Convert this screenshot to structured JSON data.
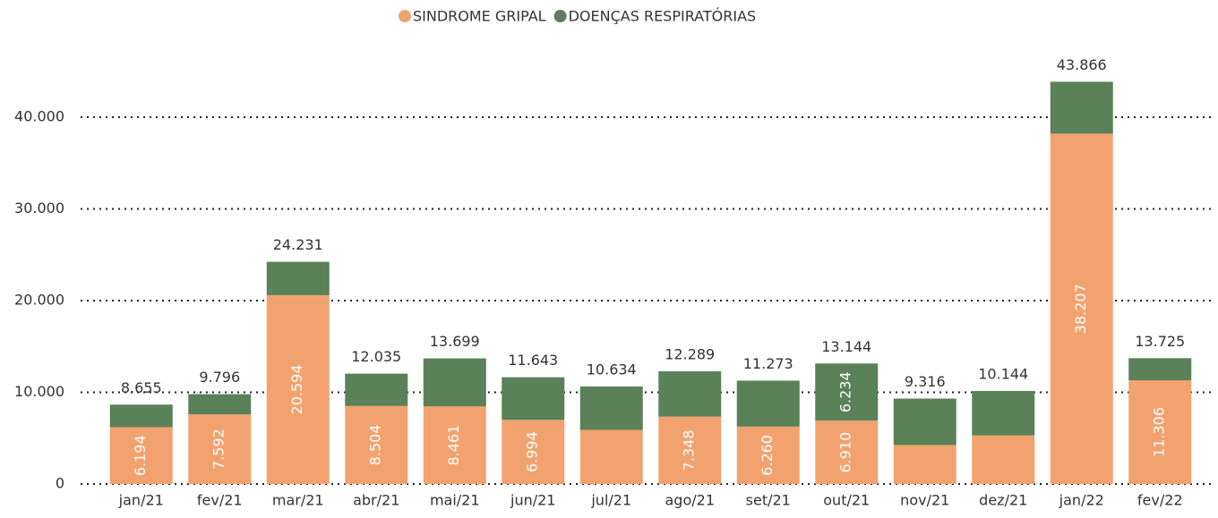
{
  "chart_data": {
    "type": "stacked-bar",
    "categories": [
      "jan/21",
      "fev/21",
      "mar/21",
      "abr/21",
      "mai/21",
      "jun/21",
      "jul/21",
      "ago/21",
      "set/21",
      "out/21",
      "nov/21",
      "dez/21",
      "jan/22",
      "fev/22"
    ],
    "series": [
      {
        "name": "SINDROME GRIPAL",
        "color": "#f2a26e",
        "values": [
          6194,
          7592,
          20594,
          8504,
          8461,
          6994,
          5900,
          7348,
          6260,
          6910,
          4250,
          5300,
          38207,
          11306
        ],
        "value_labels": [
          "6.194",
          "7.592",
          "20.594",
          "8.504",
          "8.461",
          "6.994",
          null,
          "7.348",
          "6.260",
          "6.910",
          null,
          null,
          "38.207",
          "11.306"
        ]
      },
      {
        "name": "DOENÇAS RESPIRATÓRIAS",
        "color": "#5a8158",
        "values": [
          2461,
          2204,
          3637,
          3531,
          5238,
          4649,
          4734,
          4941,
          5013,
          6234,
          5066,
          4844,
          5659,
          2419
        ],
        "value_labels": [
          null,
          null,
          null,
          null,
          null,
          null,
          null,
          null,
          null,
          "6.234",
          null,
          null,
          null,
          null
        ]
      }
    ],
    "totals": {
      "values": [
        8655,
        9796,
        24231,
        12035,
        13699,
        11643,
        10634,
        12289,
        11273,
        13144,
        9316,
        10144,
        43866,
        13725
      ],
      "value_labels": [
        "8.655",
        "9.796",
        "24.231",
        "12.035",
        "13.699",
        "11.643",
        "10.634",
        "12.289",
        "11.273",
        "13.144",
        "9.316",
        "10.144",
        "43.866",
        "13.725"
      ]
    },
    "ylim": [
      0,
      48000
    ],
    "yticks": [
      0,
      {
        "value": 10000,
        "label": "10.000"
      },
      {
        "value": 20000,
        "label": "20.000"
      },
      {
        "value": 30000,
        "label": "30.000"
      },
      {
        "value": 40000,
        "label": "40.000"
      }
    ],
    "grid": true
  }
}
